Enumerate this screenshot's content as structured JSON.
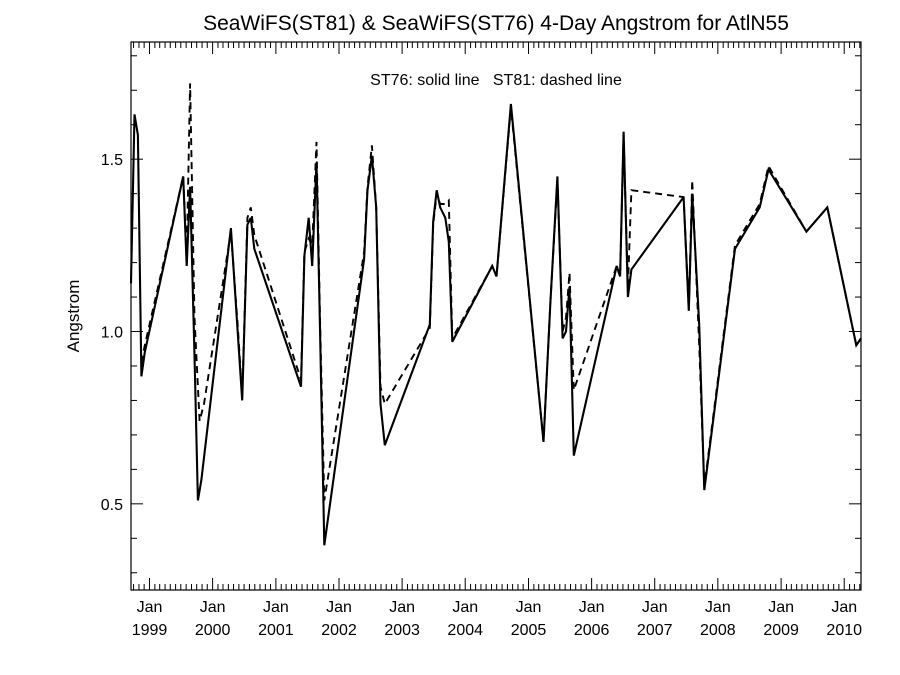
{
  "chart_data": {
    "type": "line",
    "title": "SeaWiFS(ST81) & SeaWiFS(ST76) 4-Day Angstrom for AtlN55",
    "annotation": "ST76: solid line   ST81: dashed line",
    "xlabel": "",
    "ylabel": "Angstrom",
    "xlim": [
      "1998-09-16",
      "2010-04-08"
    ],
    "ylim": [
      0.25,
      1.84
    ],
    "grid": false,
    "y_ticks": [
      0.5,
      1.0,
      1.5
    ],
    "y_tick_labels": [
      "0.5",
      "1.0",
      "1.5"
    ],
    "x_tick_month": "Jan",
    "x_tick_years": [
      "1999",
      "2000",
      "2001",
      "2002",
      "2003",
      "2004",
      "2005",
      "2006",
      "2007",
      "2008",
      "2009",
      "2010"
    ],
    "series": [
      {
        "name": "ST76",
        "style": "solid",
        "color": "#000000",
        "points": [
          [
            "1998-09-16",
            1.14
          ],
          [
            "1998-10-06",
            1.63
          ],
          [
            "1998-10-26",
            1.57
          ],
          [
            "1998-11-15",
            0.87
          ],
          [
            "1998-12-05",
            0.94
          ],
          [
            "1999-07-15",
            1.45
          ],
          [
            "1999-08-04",
            1.19
          ],
          [
            "1999-08-24",
            1.42
          ],
          [
            "1999-09-18",
            0.93
          ],
          [
            "1999-10-08",
            0.51
          ],
          [
            "1999-10-28",
            0.57
          ],
          [
            "2000-04-16",
            1.3
          ],
          [
            "2000-05-26",
            0.99
          ],
          [
            "2000-06-20",
            0.8
          ],
          [
            "2000-07-20",
            1.31
          ],
          [
            "2000-08-09",
            1.33
          ],
          [
            "2000-08-29",
            1.24
          ],
          [
            "2001-05-26",
            0.84
          ],
          [
            "2001-06-15",
            1.22
          ],
          [
            "2001-07-10",
            1.33
          ],
          [
            "2001-07-30",
            1.19
          ],
          [
            "2001-08-24",
            1.49
          ],
          [
            "2001-09-13",
            1.01
          ],
          [
            "2001-10-08",
            0.38
          ],
          [
            "2002-05-26",
            1.21
          ],
          [
            "2002-06-15",
            1.41
          ],
          [
            "2002-07-10",
            1.51
          ],
          [
            "2002-08-04",
            1.36
          ],
          [
            "2002-08-29",
            0.79
          ],
          [
            "2002-09-23",
            0.67
          ],
          [
            "2003-06-10",
            1.02
          ],
          [
            "2003-06-30",
            1.32
          ],
          [
            "2003-07-20",
            1.41
          ],
          [
            "2003-08-09",
            1.36
          ],
          [
            "2003-09-08",
            1.33
          ],
          [
            "2003-09-28",
            1.26
          ],
          [
            "2003-10-18",
            0.97
          ],
          [
            "2004-06-05",
            1.19
          ],
          [
            "2004-06-30",
            1.16
          ],
          [
            "2004-09-21",
            1.66
          ],
          [
            "2005-03-29",
            0.68
          ],
          [
            "2005-05-08",
            1.09
          ],
          [
            "2005-06-17",
            1.45
          ],
          [
            "2005-07-17",
            0.98
          ],
          [
            "2005-08-06",
            1.0
          ],
          [
            "2005-08-26",
            1.13
          ],
          [
            "2005-09-20",
            0.64
          ],
          [
            "2006-05-26",
            1.19
          ],
          [
            "2006-06-15",
            1.16
          ],
          [
            "2006-07-05",
            1.58
          ],
          [
            "2006-07-30",
            1.1
          ],
          [
            "2006-08-19",
            1.18
          ],
          [
            "2007-06-17",
            1.39
          ],
          [
            "2007-07-17",
            1.06
          ],
          [
            "2007-08-06",
            1.4
          ],
          [
            "2007-09-15",
            1.02
          ],
          [
            "2007-10-15",
            0.54
          ],
          [
            "2008-04-09",
            1.24
          ],
          [
            "2008-08-30",
            1.36
          ],
          [
            "2008-10-20",
            1.47
          ],
          [
            "2009-05-27",
            1.29
          ],
          [
            "2009-09-25",
            1.36
          ],
          [
            "2010-03-12",
            0.96
          ],
          [
            "2010-04-08",
            0.98
          ]
        ]
      },
      {
        "name": "ST81",
        "style": "dashed",
        "color": "#000000",
        "points": [
          [
            "1998-11-15",
            0.91
          ],
          [
            "1998-12-05",
            0.96
          ],
          [
            "1999-07-15",
            1.45
          ],
          [
            "1999-08-04",
            1.21
          ],
          [
            "1999-08-24",
            1.72
          ],
          [
            "1999-09-18",
            1.04
          ],
          [
            "1999-10-18",
            0.74
          ],
          [
            "1999-11-12",
            0.79
          ],
          [
            "2000-04-16",
            1.29
          ],
          [
            "2000-05-26",
            1.01
          ],
          [
            "2000-06-20",
            0.81
          ],
          [
            "2000-07-20",
            1.33
          ],
          [
            "2000-08-09",
            1.36
          ],
          [
            "2000-08-29",
            1.28
          ],
          [
            "2001-05-26",
            0.86
          ],
          [
            "2001-06-15",
            1.23
          ],
          [
            "2001-07-10",
            1.27
          ],
          [
            "2001-07-30",
            1.25
          ],
          [
            "2001-08-24",
            1.55
          ],
          [
            "2001-09-13",
            1.04
          ],
          [
            "2001-10-08",
            0.51
          ],
          [
            "2002-05-26",
            1.23
          ],
          [
            "2002-06-15",
            1.42
          ],
          [
            "2002-07-10",
            1.54
          ],
          [
            "2002-08-04",
            1.36
          ],
          [
            "2002-08-29",
            0.84
          ],
          [
            "2002-09-23",
            0.79
          ],
          [
            "2003-06-10",
            1.01
          ],
          [
            "2003-06-30",
            1.31
          ],
          [
            "2003-07-20",
            1.4
          ],
          [
            "2003-08-09",
            1.37
          ],
          [
            "2003-09-08",
            1.37
          ],
          [
            "2003-09-28",
            1.38
          ],
          [
            "2003-10-18",
            0.98
          ],
          [
            "2004-06-05",
            1.19
          ],
          [
            "2004-06-30",
            1.16
          ],
          [
            "2004-09-21",
            1.65
          ],
          [
            "2005-03-29",
            0.68
          ],
          [
            "2005-05-08",
            1.09
          ],
          [
            "2005-06-17",
            1.44
          ],
          [
            "2005-07-17",
            1.0
          ],
          [
            "2005-08-06",
            1.04
          ],
          [
            "2005-08-26",
            1.17
          ],
          [
            "2005-09-20",
            0.83
          ],
          [
            "2006-05-26",
            1.19
          ],
          [
            "2006-06-15",
            1.16
          ],
          [
            "2006-07-05",
            1.57
          ],
          [
            "2006-07-30",
            1.13
          ],
          [
            "2006-08-19",
            1.41
          ],
          [
            "2007-06-17",
            1.39
          ],
          [
            "2007-07-17",
            1.06
          ],
          [
            "2007-08-06",
            1.44
          ],
          [
            "2007-09-15",
            0.96
          ],
          [
            "2007-10-15",
            0.55
          ],
          [
            "2008-04-09",
            1.25
          ],
          [
            "2008-08-30",
            1.37
          ],
          [
            "2008-10-20",
            1.48
          ],
          [
            "2009-05-27",
            1.29
          ],
          [
            "2009-09-25",
            1.36
          ],
          [
            "2010-03-12",
            0.96
          ],
          [
            "2010-04-08",
            0.98
          ]
        ]
      }
    ]
  }
}
